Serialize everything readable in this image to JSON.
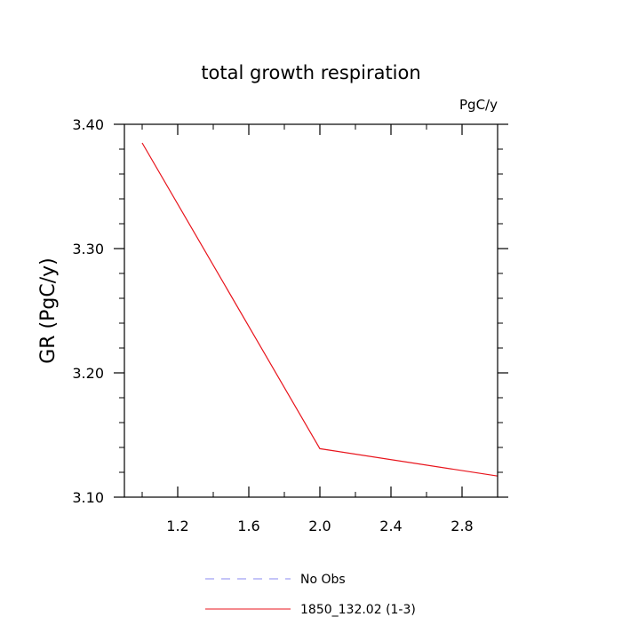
{
  "chart_data": {
    "type": "line",
    "title": "total growth respiration",
    "units_label": "PgC/y",
    "ylabel": "GR  (PgC/y)",
    "xlabel": "",
    "xlim": [
      0.9,
      3.0
    ],
    "ylim": [
      3.1,
      3.4
    ],
    "xticks": [
      1.2,
      1.6,
      2.0,
      2.4,
      2.8
    ],
    "xtick_labels": [
      "1.2",
      "1.6",
      "2.0",
      "2.4",
      "2.8"
    ],
    "yticks": [
      3.1,
      3.2,
      3.3,
      3.4
    ],
    "ytick_labels": [
      "3.10",
      "3.20",
      "3.30",
      "3.40"
    ],
    "grid": false,
    "legend_position": "bottom",
    "series": [
      {
        "name": "No Obs",
        "style": "dashed",
        "color": "#8a8af0",
        "x": [],
        "y": []
      },
      {
        "name": "1850_132.02 (1-3)",
        "style": "solid",
        "color": "#e8141c",
        "x": [
          1.0,
          2.0,
          3.0
        ],
        "y": [
          3.385,
          3.139,
          3.117
        ]
      }
    ]
  }
}
